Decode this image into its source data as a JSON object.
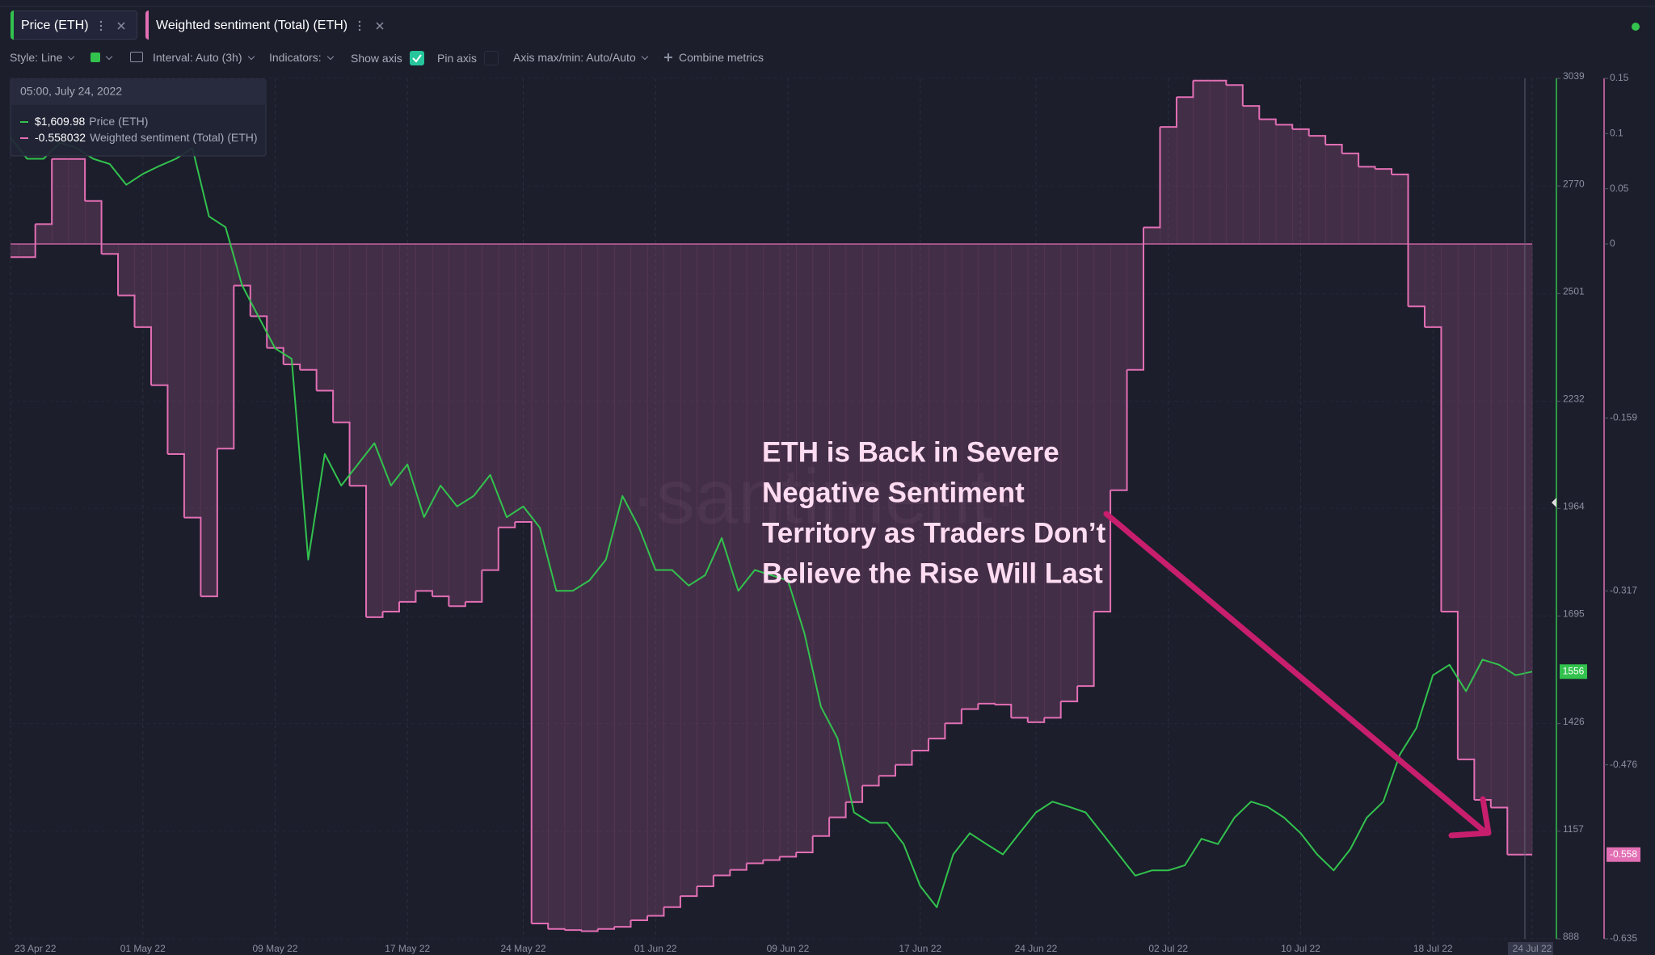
{
  "toolbar": {
    "style": "Style: Line",
    "interval": "Interval: Auto (3h)",
    "indicators": "Indicators:",
    "show_axis": "Show axis",
    "pin_axis": "Pin axis",
    "axis_minmax": "Axis max/min: Auto/Auto",
    "combine": "Combine metrics"
  },
  "tooltip": {
    "time": "05:00, July 24, 2022",
    "price": "$1,609.98",
    "sentiment": "-0.558032"
  },
  "chart_data": {
    "type": "line",
    "annotation": [
      "ETH is Back in Severe",
      "Negative Sentiment",
      "Territory as Traders Don’t",
      "Believe the Rise Will Last"
    ],
    "watermark": "·santiment·",
    "categories": [
      "23 Apr 22",
      null,
      null,
      null,
      null,
      null,
      null,
      null,
      "01 May 22",
      null,
      null,
      null,
      null,
      null,
      null,
      null,
      "09 May 22",
      null,
      null,
      null,
      null,
      null,
      null,
      null,
      "17 May 22",
      null,
      null,
      null,
      null,
      null,
      null,
      "24 May 22",
      null,
      null,
      null,
      null,
      null,
      null,
      null,
      "01 Jun 22",
      null,
      null,
      null,
      null,
      null,
      null,
      null,
      "09 Jun 22",
      null,
      null,
      null,
      null,
      null,
      null,
      null,
      "17 Jun 22",
      null,
      null,
      null,
      null,
      null,
      null,
      "24 Jun 22",
      null,
      null,
      null,
      null,
      null,
      null,
      null,
      "02 Jul 22",
      null,
      null,
      null,
      null,
      null,
      null,
      null,
      "10 Jul 22",
      null,
      null,
      null,
      null,
      null,
      null,
      null,
      "18 Jul 22",
      null,
      null,
      null,
      null,
      null,
      "24 Jul 22"
    ],
    "series": [
      {
        "name": "Price (ETH)",
        "color": "#32c24d",
        "type": "line",
        "values": [
          2891,
          2838,
          2838,
          2878,
          2865,
          2838,
          2825,
          2773,
          2800,
          2820,
          2838,
          2865,
          2694,
          2667,
          2522,
          2443,
          2364,
          2338,
          1836,
          2100,
          2021,
          2074,
          2127,
          2021,
          2074,
          1942,
          2021,
          1969,
          1995,
          2048,
          1942,
          1969,
          1916,
          1758,
          1758,
          1784,
          1836,
          1995,
          1916,
          1810,
          1810,
          1771,
          1797,
          1890,
          1758,
          1810,
          1797,
          1784,
          1652,
          1468,
          1389,
          1204,
          1178,
          1178,
          1125,
          1020,
          967,
          1099,
          1152,
          1125,
          1099,
          1152,
          1204,
          1231,
          1218,
          1204,
          1152,
          1099,
          1046,
          1059,
          1059,
          1072,
          1138,
          1125,
          1191,
          1231,
          1218,
          1191,
          1152,
          1099,
          1059,
          1112,
          1191,
          1231,
          1349,
          1415,
          1547,
          1573,
          1507,
          1586,
          1573,
          1547,
          1556
        ]
      },
      {
        "name": "Weighted sentiment (Total) (ETH)",
        "color": "#e26fb4",
        "type": "area",
        "axis": "y2",
        "values": [
          -0.012,
          -0.012,
          0.018,
          0.077,
          0.077,
          0.039,
          -0.009,
          -0.047,
          -0.076,
          -0.129,
          -0.192,
          -0.25,
          -0.322,
          -0.187,
          -0.038,
          -0.066,
          -0.095,
          -0.11,
          -0.115,
          -0.134,
          -0.163,
          -0.221,
          -0.341,
          -0.336,
          -0.327,
          -0.317,
          -0.322,
          -0.331,
          -0.327,
          -0.298,
          -0.259,
          -0.254,
          -0.621,
          -0.626,
          -0.627,
          -0.628,
          -0.626,
          -0.624,
          -0.618,
          -0.614,
          -0.606,
          -0.596,
          -0.587,
          -0.577,
          -0.572,
          -0.566,
          -0.563,
          -0.56,
          -0.556,
          -0.541,
          -0.524,
          -0.51,
          -0.495,
          -0.486,
          -0.476,
          -0.463,
          -0.452,
          -0.438,
          -0.425,
          -0.42,
          -0.421,
          -0.433,
          -0.437,
          -0.433,
          -0.418,
          -0.404,
          -0.336,
          -0.225,
          -0.115,
          0.015,
          0.106,
          0.133,
          0.148,
          0.148,
          0.144,
          0.125,
          0.113,
          0.108,
          0.104,
          0.098,
          0.09,
          0.082,
          0.07,
          0.068,
          0.063,
          -0.057,
          -0.076,
          -0.336,
          -0.471,
          -0.508,
          -0.515,
          -0.558,
          -0.558
        ]
      }
    ],
    "ylim": [
      888,
      3039
    ],
    "yticks": [
      888,
      1157,
      1426,
      1695,
      1964,
      2232,
      2501,
      2770,
      3039
    ],
    "y2lim": [
      -0.635,
      0.15
    ],
    "y2ticks": [
      0.15,
      0.1,
      0.05,
      0,
      -0.159,
      -0.317,
      -0.476,
      -0.635
    ],
    "current_values": {
      "price": 1556,
      "sentiment": -0.558
    },
    "grid": true
  }
}
